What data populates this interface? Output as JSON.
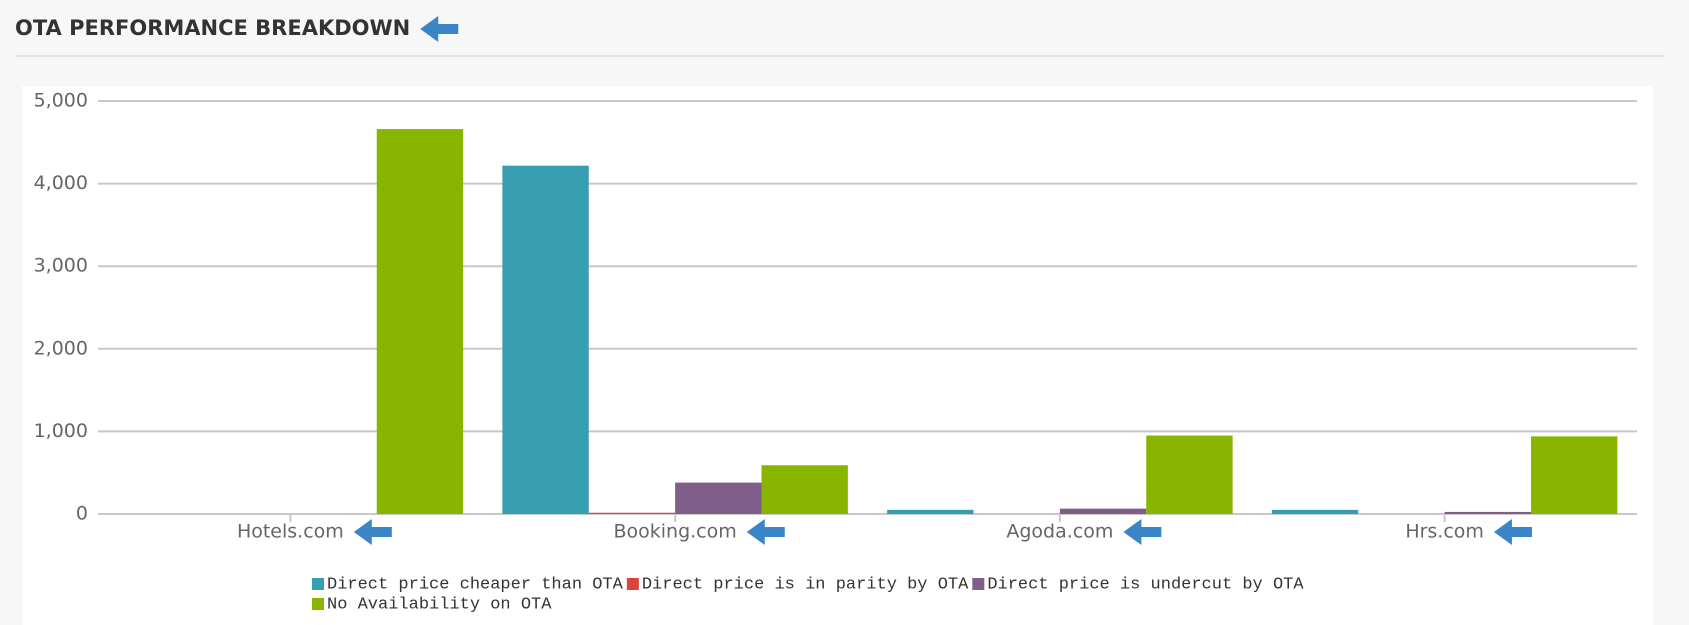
{
  "header": {
    "title": "OTA PERFORMANCE BREAKDOWN"
  },
  "chart_data": {
    "type": "bar",
    "categories": [
      "Hotels.com",
      "Booking.com",
      "Agoda.com",
      "Hrs.com"
    ],
    "series": [
      {
        "name": "Direct price cheaper than OTA",
        "color": "#369eb0",
        "values": [
          0,
          4217,
          50,
          50
        ]
      },
      {
        "name": "Direct price is in parity by OTA",
        "color": "#d9453d",
        "values": [
          0,
          15,
          0,
          0
        ]
      },
      {
        "name": "Direct price is undercut by OTA",
        "color": "#7f5f8a",
        "values": [
          0,
          380,
          65,
          25
        ]
      },
      {
        "name": "No Availability on OTA",
        "color": "#87b500",
        "values": [
          4660,
          590,
          950,
          940
        ]
      }
    ],
    "ylim": [
      0,
      5000
    ],
    "yticks": [
      0,
      {
        "value": 1000,
        "label": "1,000"
      },
      {
        "value": 2000,
        "label": "2,000"
      },
      {
        "value": 3000,
        "label": "3,000"
      },
      {
        "value": 4000,
        "label": "4,000"
      },
      {
        "value": 5000,
        "label": "5,000"
      }
    ],
    "grid": true,
    "legend": "bottom"
  }
}
